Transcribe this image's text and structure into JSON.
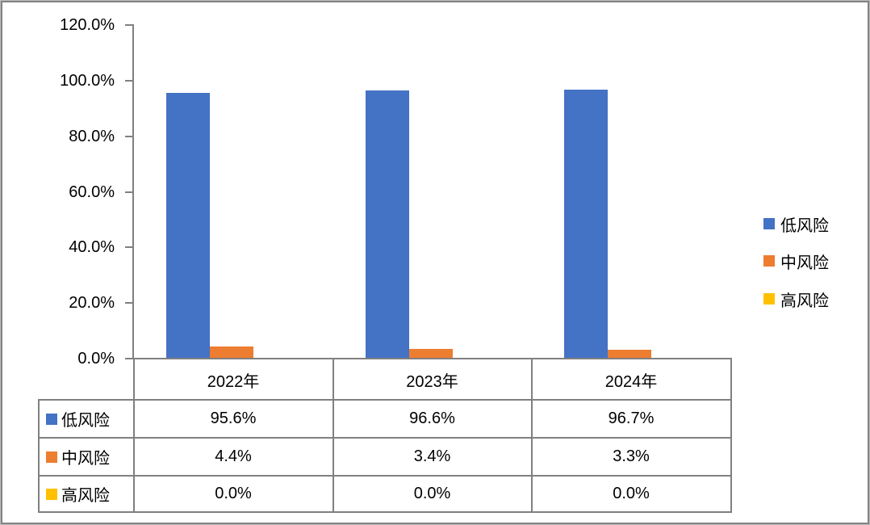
{
  "chart_data": {
    "type": "bar",
    "title": "",
    "categories": [
      "2022年",
      "2023年",
      "2024年"
    ],
    "series": [
      {
        "name": "低风险",
        "color": "#4472C4",
        "values": [
          95.6,
          96.6,
          96.7
        ],
        "formatted": [
          "95.6%",
          "96.6%",
          "96.7%"
        ]
      },
      {
        "name": "中风险",
        "color": "#ED7D31",
        "values": [
          4.4,
          3.4,
          3.3
        ],
        "formatted": [
          "4.4%",
          "3.4%",
          "3.3%"
        ]
      },
      {
        "name": "高风险",
        "color": "#FFC000",
        "values": [
          0.0,
          0.0,
          0.0
        ],
        "formatted": [
          "0.0%",
          "0.0%",
          "0.0%"
        ]
      }
    ],
    "y_axis": {
      "min": 0,
      "max": 120,
      "step": 20,
      "tick_labels": [
        "0.0%",
        "20.0%",
        "40.0%",
        "60.0%",
        "80.0%",
        "100.0%",
        "120.0%"
      ]
    },
    "legend": {
      "position": "right",
      "entries": [
        "低风险",
        "中风险",
        "高风险"
      ]
    },
    "grid": false,
    "data_table_shown": true
  },
  "colors": {
    "axis_line": "#808080",
    "table_line": "#808080",
    "text": "#000000",
    "background": "#FFFFFF",
    "series_blue": "#4472C4",
    "series_orange": "#ED7D31",
    "series_yellow": "#FFC000"
  }
}
